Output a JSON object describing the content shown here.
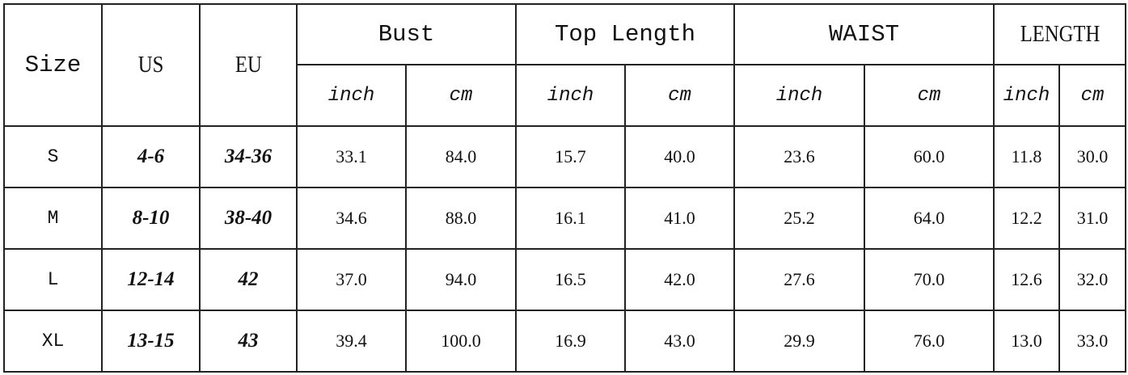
{
  "headers": {
    "size": "Size",
    "us": "US",
    "eu": "EU",
    "groups": [
      "Bust",
      "Top Length",
      "WAIST",
      "LENGTH"
    ],
    "units": [
      "inch",
      "cm"
    ]
  },
  "rows": [
    {
      "size": "S",
      "us": "4-6",
      "eu": "34-36",
      "values": [
        "33.1",
        "84.0",
        "15.7",
        "40.0",
        "23.6",
        "60.0",
        "11.8",
        "30.0"
      ]
    },
    {
      "size": "M",
      "us": "8-10",
      "eu": "38-40",
      "values": [
        "34.6",
        "88.0",
        "16.1",
        "41.0",
        "25.2",
        "64.0",
        "12.2",
        "31.0"
      ]
    },
    {
      "size": "L",
      "us": "12-14",
      "eu": "42",
      "values": [
        "37.0",
        "94.0",
        "16.5",
        "42.0",
        "27.6",
        "70.0",
        "12.6",
        "32.0"
      ]
    },
    {
      "size": "XL",
      "us": "13-15",
      "eu": "43",
      "values": [
        "39.4",
        "100.0",
        "16.9",
        "43.0",
        "29.9",
        "76.0",
        "13.0",
        "33.0"
      ]
    }
  ]
}
